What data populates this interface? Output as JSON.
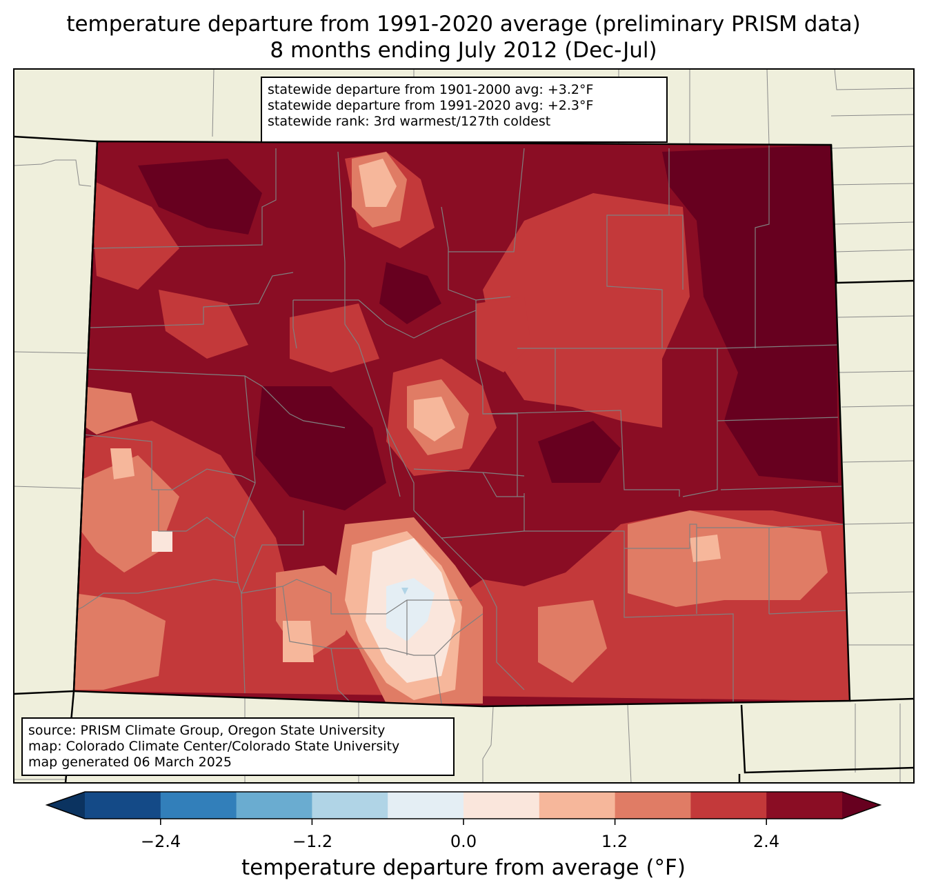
{
  "title": {
    "line1": "temperature departure from 1991-2020 average (preliminary PRISM data)",
    "line2": "8 months ending July 2012 (Dec-Jul)"
  },
  "stats": {
    "line1": "statewide departure from 1901-2000 avg: +3.2°F",
    "line2": "statewide departure from 1991-2020 avg: +2.3°F",
    "line3": "statewide rank: 3rd warmest/127th coldest"
  },
  "source": {
    "line1": "source: PRISM Climate Group, Oregon State University",
    "line2": "map: Colorado Climate Center/Colorado State University",
    "line3": "map generated 06 March 2025"
  },
  "colorbar": {
    "label": "temperature departure from average (°F)",
    "ticks": [
      "−2.4",
      "−1.2",
      "0.0",
      "1.2",
      "2.4"
    ],
    "range": [
      -3.0,
      3.0
    ],
    "step": 0.6,
    "colors": [
      "#144a87",
      "#327fba",
      "#6aacd0",
      "#b0d4e6",
      "#e4eef4",
      "#fae6dc",
      "#f6b79b",
      "#e07c65",
      "#c3393a",
      "#8a0d24"
    ],
    "under_color": "#0b3360",
    "over_color": "#67001f"
  },
  "map_colors": {
    "background": "#efefdc",
    "darkest": "#67001f",
    "dark": "#8a0d24",
    "mid": "#c3393a",
    "salmon": "#e07c65",
    "peach": "#f6b79b",
    "pale": "#fae6dc",
    "neutral": "#e4eef4",
    "light_blue": "#b0d4e6"
  }
}
